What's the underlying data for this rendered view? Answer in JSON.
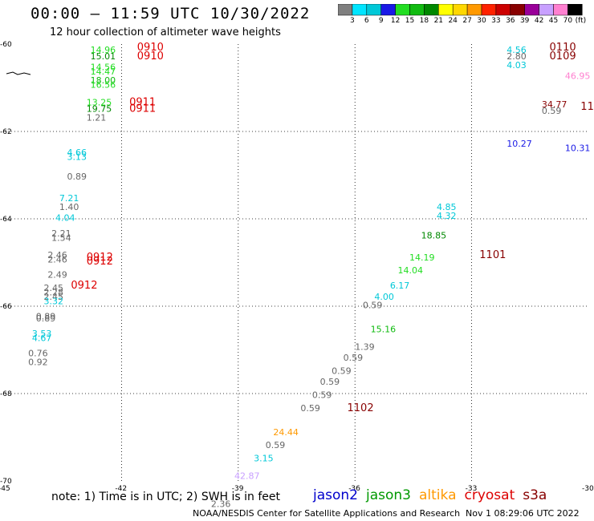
{
  "header": {
    "title": "00:00 – 11:59 UTC 10/30/2022",
    "subtitle": "12 hour collection of altimeter wave heights"
  },
  "colorbar": {
    "unit": "(ft)",
    "labels": [
      "3",
      "6",
      "9",
      "12",
      "15",
      "18",
      "21",
      "24",
      "27",
      "30",
      "33",
      "36",
      "39",
      "42",
      "45",
      "70"
    ],
    "colors": [
      "#7f7f7f",
      "#00e5ff",
      "#00c8d8",
      "#1a1ae6",
      "#22dd22",
      "#11bb11",
      "#008800",
      "#ffff00",
      "#ffd700",
      "#ff9900",
      "#ff2200",
      "#cc0000",
      "#880000",
      "#990099",
      "#c8a0ff",
      "#ff80d0",
      "#000000"
    ]
  },
  "footer": {
    "note": "note: 1) Time is in UTC; 2) SWH is in feet",
    "credit": "NOAA/NESDIS Center for Satellite Applications and Research",
    "generated": "Nov  1 08:29:06 UTC 2022"
  },
  "legend": [
    {
      "name": "jason2",
      "color": "#0000cc"
    },
    {
      "name": "jason3",
      "color": "#009900"
    },
    {
      "name": "altika",
      "color": "#ff9900"
    },
    {
      "name": "cryosat",
      "color": "#dd0000"
    },
    {
      "name": "s3a",
      "color": "#880000"
    }
  ],
  "chart_data": {
    "type": "scatter",
    "x_ticks": [
      "-45",
      "-42",
      "-39",
      "-36",
      "-33",
      "-30"
    ],
    "y_ticks": [
      "-60",
      "-62",
      "-64",
      "-66",
      "-68",
      "-70"
    ],
    "xlim": [
      -45,
      -30
    ],
    "ylim": [
      -70,
      -60
    ],
    "grid": true,
    "points": [
      {
        "lon": -42.8,
        "lat": -60.2,
        "label": "14.96",
        "color": "#22dd22"
      },
      {
        "lon": -42.8,
        "lat": -60.35,
        "label": "15.01",
        "color": "#008800"
      },
      {
        "lon": -42.8,
        "lat": -60.6,
        "label": "14.56",
        "color": "#22dd22"
      },
      {
        "lon": -42.8,
        "lat": -60.7,
        "label": "14.47",
        "color": "#22dd22"
      },
      {
        "lon": -42.8,
        "lat": -60.9,
        "label": "18.00",
        "color": "#11bb11"
      },
      {
        "lon": -42.8,
        "lat": -61.0,
        "label": "16.56",
        "color": "#22dd22"
      },
      {
        "lon": -42.9,
        "lat": -61.4,
        "label": "13.25",
        "color": "#22dd22"
      },
      {
        "lon": -42.9,
        "lat": -61.55,
        "label": "19.75",
        "color": "#008800"
      },
      {
        "lon": -42.9,
        "lat": -61.75,
        "label": "1.21",
        "color": "#666666"
      },
      {
        "lon": -43.4,
        "lat": -62.55,
        "label": "4.66",
        "color": "#00c8d8"
      },
      {
        "lon": -43.4,
        "lat": -62.65,
        "label": "3.13",
        "color": "#00c8d8"
      },
      {
        "lon": -43.4,
        "lat": -63.1,
        "label": "0.89",
        "color": "#666666"
      },
      {
        "lon": -43.6,
        "lat": -63.6,
        "label": "7.21",
        "color": "#00c8d8"
      },
      {
        "lon": -43.6,
        "lat": -63.8,
        "label": "1.40",
        "color": "#666666"
      },
      {
        "lon": -43.7,
        "lat": -64.05,
        "label": "4.04",
        "color": "#00c8d8"
      },
      {
        "lon": -43.8,
        "lat": -64.4,
        "label": "2.21",
        "color": "#666666"
      },
      {
        "lon": -43.8,
        "lat": -64.5,
        "label": "1.54",
        "color": "#666666"
      },
      {
        "lon": -43.9,
        "lat": -64.9,
        "label": "2.46",
        "color": "#666666"
      },
      {
        "lon": -43.9,
        "lat": -65.0,
        "label": "2.46",
        "color": "#666666"
      },
      {
        "lon": -43.9,
        "lat": -65.35,
        "label": "2.49",
        "color": "#666666"
      },
      {
        "lon": -44.0,
        "lat": -65.65,
        "label": "2.45",
        "color": "#666666"
      },
      {
        "lon": -44.0,
        "lat": -65.75,
        "label": "2.28",
        "color": "#666666"
      },
      {
        "lon": -44.0,
        "lat": -65.85,
        "label": "2.45",
        "color": "#666666"
      },
      {
        "lon": -44.0,
        "lat": -65.95,
        "label": "3.32",
        "color": "#00c8d8"
      },
      {
        "lon": -44.2,
        "lat": -66.3,
        "label": "0.89",
        "color": "#666666"
      },
      {
        "lon": -44.2,
        "lat": -66.35,
        "label": "0.89",
        "color": "#666666"
      },
      {
        "lon": -44.3,
        "lat": -66.7,
        "label": "3.53",
        "color": "#00c8d8"
      },
      {
        "lon": -44.3,
        "lat": -66.8,
        "label": "4.67",
        "color": "#00c8d8"
      },
      {
        "lon": -44.4,
        "lat": -67.15,
        "label": "0.76",
        "color": "#666666"
      },
      {
        "lon": -44.4,
        "lat": -67.35,
        "label": "0.92",
        "color": "#666666"
      },
      {
        "lon": -33.9,
        "lat": -63.8,
        "label": "4.85",
        "color": "#00c8d8"
      },
      {
        "lon": -33.9,
        "lat": -64.0,
        "label": "4.32",
        "color": "#00c8d8"
      },
      {
        "lon": -34.3,
        "lat": -64.45,
        "label": "18.85",
        "color": "#008800"
      },
      {
        "lon": -34.6,
        "lat": -64.95,
        "label": "14.19",
        "color": "#22dd22"
      },
      {
        "lon": -34.9,
        "lat": -65.25,
        "label": "14.04",
        "color": "#22dd22"
      },
      {
        "lon": -35.1,
        "lat": -65.6,
        "label": "6.17",
        "color": "#00c8d8"
      },
      {
        "lon": -35.5,
        "lat": -65.85,
        "label": "4.00",
        "color": "#00c8d8"
      },
      {
        "lon": -35.8,
        "lat": -66.05,
        "label": "0.59",
        "color": "#666666"
      },
      {
        "lon": -35.6,
        "lat": -66.6,
        "label": "15.16",
        "color": "#11bb11"
      },
      {
        "lon": -36.0,
        "lat": -67.0,
        "label": "1.39",
        "color": "#666666"
      },
      {
        "lon": -36.3,
        "lat": -67.25,
        "label": "0.59",
        "color": "#666666"
      },
      {
        "lon": -36.6,
        "lat": -67.55,
        "label": "0.59",
        "color": "#666666"
      },
      {
        "lon": -36.9,
        "lat": -67.8,
        "label": "0.59",
        "color": "#666666"
      },
      {
        "lon": -37.1,
        "lat": -68.1,
        "label": "0.59",
        "color": "#666666"
      },
      {
        "lon": -37.4,
        "lat": -68.4,
        "label": "0.59",
        "color": "#666666"
      },
      {
        "lon": -38.1,
        "lat": -68.95,
        "label": "24.44",
        "color": "#ff9900"
      },
      {
        "lon": -38.3,
        "lat": -69.25,
        "label": "0.59",
        "color": "#666666"
      },
      {
        "lon": -38.6,
        "lat": -69.55,
        "label": "3.15",
        "color": "#00c8d8"
      },
      {
        "lon": -39.1,
        "lat": -69.95,
        "label": "42.87",
        "color": "#c8a0ff"
      },
      {
        "lon": -39.7,
        "lat": -70.6,
        "label": "2.36",
        "color": "#666666"
      },
      {
        "lon": -32.1,
        "lat": -60.2,
        "label": "4.56",
        "color": "#00c8d8"
      },
      {
        "lon": -32.1,
        "lat": -60.35,
        "label": "2.80",
        "color": "#666666"
      },
      {
        "lon": -32.1,
        "lat": -60.55,
        "label": "4.03",
        "color": "#00c8d8"
      },
      {
        "lon": -30.6,
        "lat": -60.8,
        "label": "46.95",
        "color": "#ff80d0"
      },
      {
        "lon": -31.2,
        "lat": -61.45,
        "label": "34.77",
        "color": "#880000"
      },
      {
        "lon": -31.2,
        "lat": -61.6,
        "label": "0.59",
        "color": "#666666"
      },
      {
        "lon": -32.1,
        "lat": -62.35,
        "label": "10.27",
        "color": "#1a1ae6"
      },
      {
        "lon": -30.6,
        "lat": -62.45,
        "label": "10.31",
        "color": "#1a1ae6"
      }
    ],
    "times": [
      {
        "lon": -41.6,
        "lat": -60.15,
        "label": "0910",
        "color": "#dd0000"
      },
      {
        "lon": -41.6,
        "lat": -60.35,
        "label": "0910",
        "color": "#dd0000"
      },
      {
        "lon": -41.8,
        "lat": -61.4,
        "label": "0911",
        "color": "#dd0000"
      },
      {
        "lon": -41.8,
        "lat": -61.55,
        "label": "0911",
        "color": "#dd0000"
      },
      {
        "lon": -42.9,
        "lat": -64.95,
        "label": "0912",
        "color": "#dd0000"
      },
      {
        "lon": -42.9,
        "lat": -65.05,
        "label": "0912",
        "color": "#dd0000"
      },
      {
        "lon": -43.3,
        "lat": -65.6,
        "label": "0912",
        "color": "#dd0000"
      },
      {
        "lon": -32.8,
        "lat": -64.9,
        "label": "1101",
        "color": "#880000"
      },
      {
        "lon": -36.2,
        "lat": -68.4,
        "label": "1102",
        "color": "#880000"
      },
      {
        "lon": -31.0,
        "lat": -60.15,
        "label": "0110",
        "color": "#880000"
      },
      {
        "lon": -31.0,
        "lat": -60.35,
        "label": "0109",
        "color": "#880000"
      },
      {
        "lon": -30.2,
        "lat": -61.5,
        "label": "11",
        "color": "#880000"
      }
    ]
  }
}
